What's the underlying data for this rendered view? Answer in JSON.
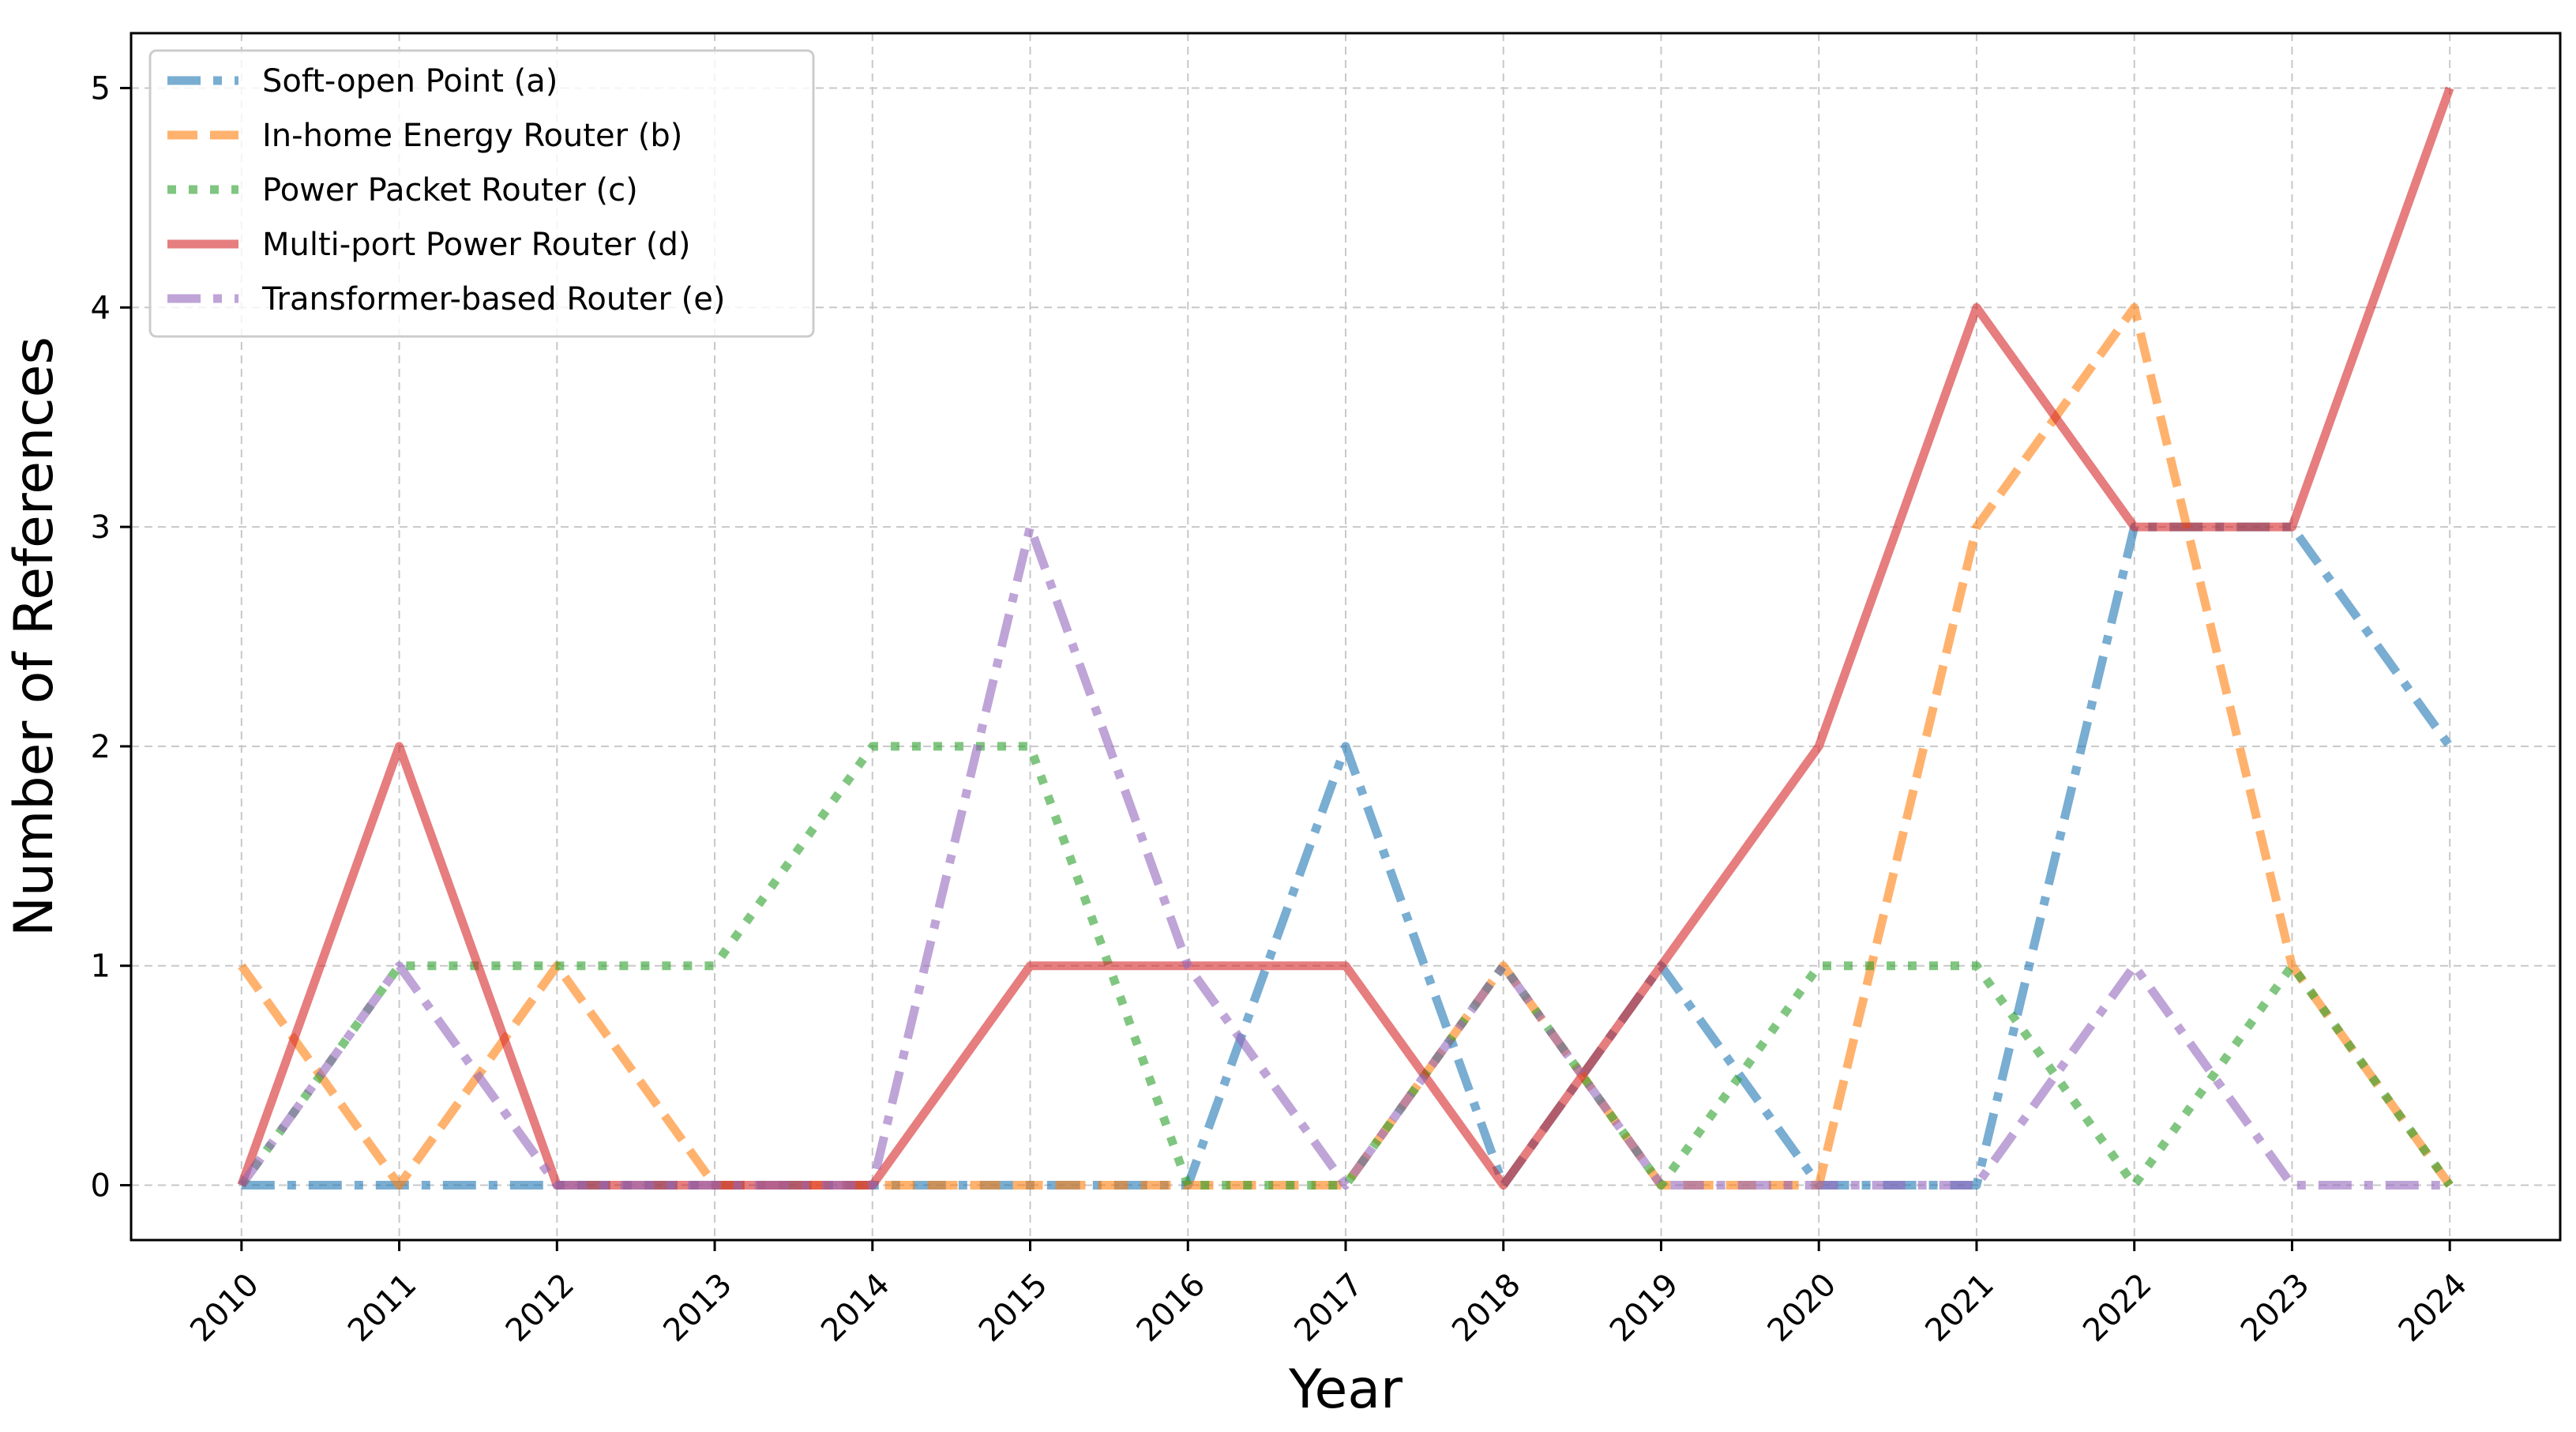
{
  "chart_data": {
    "type": "line",
    "title": "",
    "xlabel": "Year",
    "ylabel": "Number of References",
    "x": [
      2010,
      2011,
      2012,
      2013,
      2014,
      2015,
      2016,
      2017,
      2018,
      2019,
      2020,
      2021,
      2022,
      2023,
      2024
    ],
    "xticklabels": [
      "2010",
      "2011",
      "2012",
      "2013",
      "2014",
      "2015",
      "2016",
      "2017",
      "2018",
      "2019",
      "2020",
      "2021",
      "2022",
      "2023",
      "2024"
    ],
    "yticks": [
      0,
      1,
      2,
      3,
      4,
      5
    ],
    "yticklabels": [
      "0",
      "1",
      "2",
      "3",
      "4",
      "5"
    ],
    "xlim": [
      2009.3,
      2024.7
    ],
    "ylim": [
      -0.25,
      5.25
    ],
    "grid": true,
    "legend_position": "top-left",
    "series": [
      {
        "name": "Soft-open Point (a)",
        "color": "#1f77b4",
        "linestyle": "dashdot",
        "values": [
          0,
          0,
          0,
          0,
          0,
          0,
          0,
          2,
          0,
          1,
          0,
          0,
          3,
          3,
          2
        ]
      },
      {
        "name": "In-home Energy Router (b)",
        "color": "#ff7f0e",
        "linestyle": "dashed",
        "values": [
          1,
          0,
          1,
          0,
          0,
          0,
          0,
          0,
          1,
          0,
          0,
          3,
          4,
          1,
          0
        ]
      },
      {
        "name": "Power Packet Router (c)",
        "color": "#2ca02c",
        "linestyle": "dotted",
        "values": [
          0,
          1,
          1,
          1,
          2,
          2,
          0,
          0,
          1,
          0,
          1,
          1,
          0,
          1,
          0
        ]
      },
      {
        "name": "Multi-port Power Router (d)",
        "color": "#d62728",
        "linestyle": "solid",
        "values": [
          0,
          2,
          0,
          0,
          0,
          1,
          1,
          1,
          0,
          1,
          2,
          4,
          3,
          3,
          5
        ]
      },
      {
        "name": "Transformer-based Router (e)",
        "color": "#9467bd",
        "linestyle": "dashdot",
        "values": [
          0,
          1,
          0,
          0,
          0,
          3,
          1,
          0,
          1,
          0,
          0,
          0,
          1,
          0,
          0
        ]
      }
    ]
  }
}
